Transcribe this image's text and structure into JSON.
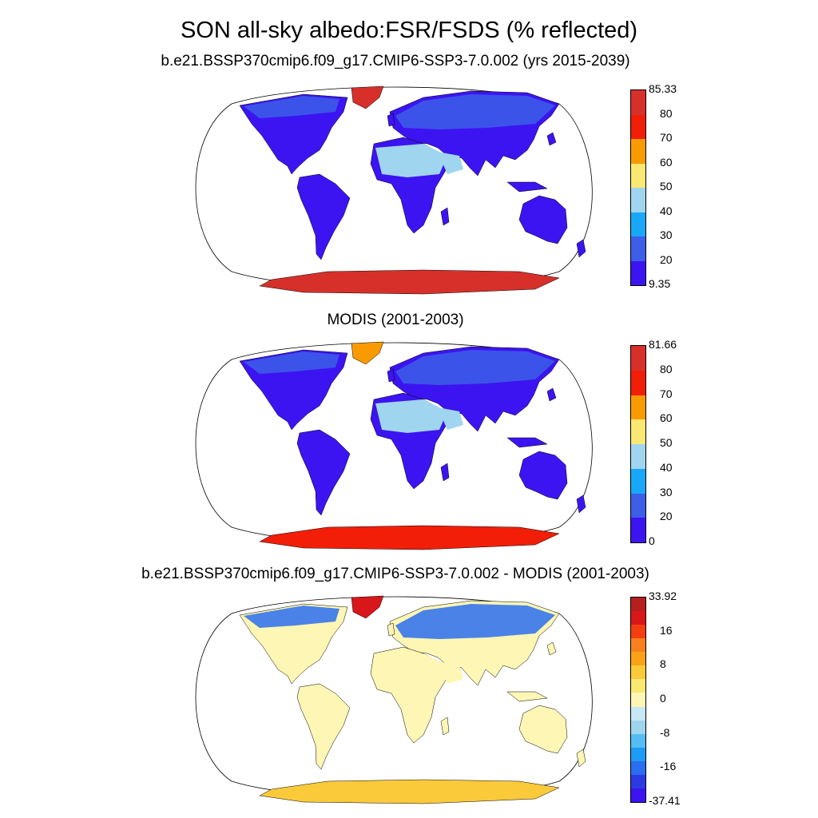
{
  "title": "SON all-sky albedo:FSR/FSDS (% reflected)",
  "panels": [
    {
      "title": "b.e21.BSSP370cmip6.f09_g17.CMIP6-SSP3-7.0.002 (yrs 2015-2039)",
      "colorbar": {
        "labels": [
          "85.33",
          "80",
          "70",
          "60",
          "50",
          "40",
          "30",
          "20",
          "9.35"
        ],
        "colors": [
          "#d7302b",
          "#f21e08",
          "#f99b00",
          "#fbe872",
          "#9fd5ef",
          "#19a7fa",
          "#3c5ee8",
          "#3c14f1"
        ]
      },
      "fills": {
        "ocean": "#ffffff",
        "land": "#3c14f1",
        "desert": "#9fd5ef",
        "ice_north": "#d7302b",
        "ice_south": "#d7302b",
        "high_lat": "#3c5ee8"
      }
    },
    {
      "title": "MODIS (2001-2003)",
      "colorbar": {
        "labels": [
          "81.66",
          "80",
          "70",
          "60",
          "50",
          "40",
          "30",
          "20",
          "0"
        ],
        "colors": [
          "#d7302b",
          "#f21e08",
          "#f99b00",
          "#fbe872",
          "#9fd5ef",
          "#19a7fa",
          "#3c5ee8",
          "#3c14f1"
        ]
      },
      "fills": {
        "ocean": "#ffffff",
        "land": "#3c14f1",
        "desert": "#9fd5ef",
        "ice_north": "#f99b00",
        "ice_south": "#f21e08",
        "high_lat": "#3c5ee8"
      }
    },
    {
      "title": "b.e21.BSSP370cmip6.f09_g17.CMIP6-SSP3-7.0.002 - MODIS (2001-2003)",
      "colorbar": {
        "labels": [
          "33.92",
          "16",
          "8",
          "0",
          "-8",
          "-16",
          "-37.41"
        ],
        "colors": [
          "#b71f1f",
          "#d9161a",
          "#f43e10",
          "#f9801f",
          "#fba117",
          "#fbca3b",
          "#fbe872",
          "#fdf6b4",
          "#c8e8f5",
          "#9fd5ef",
          "#55bdf4",
          "#1d9bf6",
          "#2a6df0",
          "#2d3ae4",
          "#3c14f1"
        ]
      },
      "fills": {
        "ocean": "#ffffff",
        "land": "#fdf6b4",
        "desert": "#fdf6b4",
        "ice_north": "#d9161a",
        "ice_south": "#fbca3b",
        "high_lat": "#2a6df0"
      }
    }
  ]
}
